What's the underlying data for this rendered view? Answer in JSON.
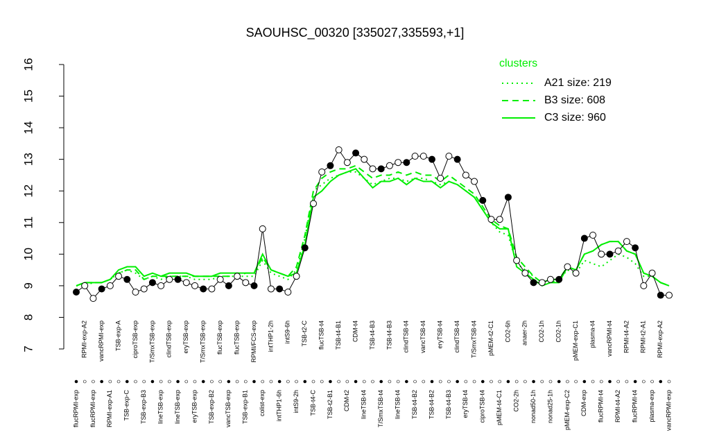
{
  "chart_data": {
    "type": "line",
    "title": "SAOUHSC_00320 [335027,335593,+1]",
    "categories": [
      "flucRPMI-exp",
      "RPMI-exp-A2",
      "flucRPMI-exp",
      "vancRPMI-exp",
      "RPMI-exp-A1",
      "TSB-exp-A",
      "TSB-exp-C",
      "ciproTSB-exp",
      "TSB-exp-B3",
      "T/SmxTSB-exp",
      "lineTSB-exp",
      "clindTSB-exp",
      "lineTSB-exp",
      "eryTSB-exp",
      "eryTSB-exp",
      "T/SmxTSB-exp",
      "TSB-exp-B2",
      "flucTSB-exp",
      "vancTSB-exp",
      "flucTSB-exp",
      "TSB-exp-B1",
      "RPMI/FCS-exp",
      "colist-exp",
      "intTHP1-2h",
      "intTHP1-6h",
      "intS9-6h",
      "intS9-2h",
      "TSB-t2-C",
      "TSB-t4-C",
      "flucTSB-t4",
      "TSB-t2-B1",
      "TSB-t4-B1",
      "CDM-t2",
      "CDM-t4",
      "lineTSB-t4",
      "TSB-t4-B3",
      "T/SmxTSB-t4",
      "TSB-t4-B3",
      "lineTSB-t4",
      "clindTSB-t4",
      "TSB-t4-B2",
      "vancTSB-t4",
      "TSB-t4-B2",
      "eryTSB-t4",
      "TSB-t4-B3",
      "clindTSB-t4",
      "eryTSB-t4",
      "T/SmxTSB-t4",
      "ciproTSB-t4",
      "pMEM-t2-C1",
      "pMEM-t4-C1",
      "CO2-6h",
      "CO2-2h",
      "anaer-2h",
      "nonad50-1h",
      "CO2-1h",
      "nonad25-1h",
      "CO2-1h",
      "pMEM-exp-C2",
      "pMEM-exp-C1",
      "CDM-exp",
      "plasma-t4",
      "flucRPMI-t4",
      "vancRPMI-t4",
      "RPMI-t4-A2",
      "RPMI-t4-A2",
      "flucRPMI-t4",
      "RPMI-t2-A1",
      "plasma-exp",
      "RPMI-exp-A2",
      "vancRPMI-exp"
    ],
    "values": [
      8.8,
      9.0,
      8.6,
      8.9,
      9.0,
      9.3,
      9.2,
      8.8,
      8.9,
      9.1,
      9.0,
      9.2,
      9.2,
      9.1,
      9.0,
      8.9,
      8.9,
      9.2,
      9.0,
      9.3,
      9.1,
      9.0,
      10.8,
      8.9,
      8.9,
      8.8,
      9.3,
      10.2,
      11.6,
      12.6,
      12.8,
      13.3,
      12.9,
      13.2,
      13.0,
      12.7,
      12.7,
      12.8,
      12.9,
      12.9,
      13.1,
      13.1,
      13.0,
      12.4,
      13.1,
      13.0,
      12.5,
      12.3,
      11.7,
      11.1,
      11.1,
      11.8,
      9.8,
      9.4,
      9.1,
      9.1,
      9.2,
      9.2,
      9.6,
      9.4,
      10.5,
      10.6,
      10.0,
      10.0,
      10.1,
      10.4,
      10.2,
      9.0,
      9.4,
      8.7,
      8.7
    ],
    "color": "#000000",
    "legend_title": "clusters",
    "series": [
      {
        "name": "A21 size: 219",
        "color": "#00ee00",
        "linestyle": "dotted",
        "values": [
          9.0,
          9.0,
          9.1,
          9.1,
          9.2,
          9.4,
          9.5,
          9.4,
          9.2,
          9.3,
          9.2,
          9.3,
          9.3,
          9.3,
          9.2,
          9.2,
          9.2,
          9.3,
          9.3,
          9.3,
          9.3,
          9.3,
          9.8,
          9.4,
          9.3,
          9.2,
          9.5,
          10.5,
          12.0,
          12.2,
          12.4,
          12.5,
          12.6,
          12.6,
          12.4,
          12.2,
          12.3,
          12.4,
          12.4,
          12.3,
          12.4,
          12.4,
          12.3,
          12.2,
          12.3,
          12.2,
          12.0,
          11.8,
          11.4,
          11.0,
          10.7,
          10.6,
          9.7,
          9.5,
          9.3,
          9.1,
          9.1,
          9.2,
          9.5,
          9.4,
          9.8,
          9.7,
          9.6,
          9.8,
          10.0,
          9.9,
          9.7,
          9.3,
          9.3,
          9.1,
          9.0
        ]
      },
      {
        "name": "B3 size: 608",
        "color": "#00ee00",
        "linestyle": "dashed",
        "values": [
          9.0,
          9.1,
          9.1,
          9.1,
          9.2,
          9.4,
          9.5,
          9.5,
          9.2,
          9.3,
          9.3,
          9.3,
          9.3,
          9.3,
          9.3,
          9.3,
          9.3,
          9.3,
          9.3,
          9.3,
          9.4,
          9.4,
          9.9,
          9.5,
          9.4,
          9.3,
          9.6,
          10.6,
          12.0,
          12.4,
          12.6,
          12.7,
          12.7,
          12.8,
          12.6,
          12.4,
          12.5,
          12.5,
          12.6,
          12.5,
          12.6,
          12.5,
          12.5,
          12.3,
          12.5,
          12.3,
          12.1,
          11.9,
          11.5,
          11.1,
          10.9,
          10.8,
          9.9,
          9.6,
          9.3,
          9.1,
          9.2,
          9.2,
          9.6,
          9.5,
          10.0,
          10.1,
          10.3,
          10.4,
          10.4,
          10.1,
          10.0,
          9.4,
          9.3,
          9.1,
          9.0
        ]
      },
      {
        "name": "C3 size: 960",
        "color": "#00ee00",
        "linestyle": "solid",
        "values": [
          9.0,
          9.1,
          9.1,
          9.1,
          9.2,
          9.5,
          9.6,
          9.6,
          9.3,
          9.4,
          9.3,
          9.4,
          9.4,
          9.4,
          9.3,
          9.3,
          9.3,
          9.4,
          9.4,
          9.4,
          9.4,
          9.4,
          10.0,
          9.5,
          9.4,
          9.3,
          9.4,
          10.3,
          11.8,
          12.0,
          12.3,
          12.5,
          12.6,
          12.7,
          12.4,
          12.1,
          12.3,
          12.3,
          12.4,
          12.2,
          12.4,
          12.3,
          12.3,
          12.1,
          12.3,
          12.2,
          12.0,
          11.8,
          11.4,
          11.0,
          10.8,
          10.8,
          9.6,
          9.4,
          9.2,
          9.0,
          9.1,
          9.1,
          9.6,
          9.5,
          10.0,
          10.1,
          10.3,
          10.4,
          10.4,
          10.1,
          10.0,
          9.4,
          9.3,
          9.1,
          9.0
        ]
      }
    ],
    "ylim": [
      7,
      16
    ],
    "yticks": [
      7,
      8,
      9,
      10,
      11,
      12,
      13,
      14,
      15,
      16
    ]
  }
}
